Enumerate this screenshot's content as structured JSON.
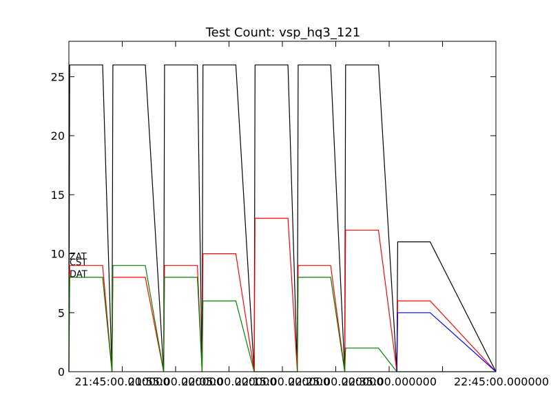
{
  "chart_data": {
    "type": "line",
    "title": "Test Count: vsp_hq3_121",
    "xlabel": "",
    "ylabel": "",
    "xlim": [
      0,
      100
    ],
    "ylim": [
      0,
      28
    ],
    "grid": false,
    "legend": "none",
    "x_tick_positions": [
      12.5,
      25.0,
      37.5,
      50.0,
      62.5,
      75.0,
      87.5
    ],
    "x_tick_labels": [
      "21:45:00.000000",
      "21:55:00.000000",
      "22:05:00.000000",
      "22:15:00.000000",
      "22:25:00.000000",
      "22:35:00.000000",
      "22:45:00.000000"
    ],
    "y_ticks": [
      0,
      5,
      10,
      15,
      20,
      25
    ],
    "series": [
      {
        "color": "#000000",
        "x": [
          0,
          0.2,
          7.9,
          10.1,
          10.3,
          17.9,
          22.2,
          22.4,
          30.1,
          31.2,
          31.4,
          39.1,
          43.4,
          43.6,
          51.3,
          53.5,
          53.7,
          61.3,
          64.6,
          64.8,
          72.5,
          76.8,
          77.0,
          84.6,
          100
        ],
        "y": [
          0,
          26,
          26,
          0,
          26,
          26,
          0,
          26,
          26,
          0,
          26,
          26,
          0,
          26,
          26,
          0,
          26,
          26,
          0,
          26,
          26,
          0,
          11,
          11,
          0
        ]
      },
      {
        "color": "#ff0000",
        "x": [
          0,
          0.2,
          7.9,
          10.1,
          10.3,
          17.9,
          22.2,
          22.4,
          30.1,
          31.2,
          31.4,
          39.1,
          43.4,
          43.6,
          51.3,
          53.5,
          53.7,
          61.3,
          64.6,
          64.8,
          72.5,
          76.8,
          77.0,
          84.6,
          100
        ],
        "y": [
          0,
          9,
          9,
          0,
          8,
          8,
          0,
          9,
          9,
          0,
          10,
          10,
          0,
          13,
          13,
          0,
          9,
          9,
          0,
          12,
          12,
          0,
          6,
          6,
          0
        ]
      },
      {
        "color": "#008000",
        "x": [
          0,
          0.2,
          7.9,
          10.1,
          10.3,
          17.9,
          22.2,
          22.4,
          30.1,
          31.2,
          31.4,
          39.1,
          43.4,
          43.6,
          51.3,
          53.5,
          53.7,
          61.3,
          64.6,
          64.8,
          72.5,
          76.8,
          77.0,
          84.6,
          100
        ],
        "y": [
          0,
          8,
          8,
          0,
          9,
          9,
          0,
          8,
          8,
          0,
          6,
          6,
          0,
          0,
          0,
          0,
          8,
          8,
          0,
          2,
          2,
          0,
          0,
          0,
          0
        ]
      },
      {
        "color": "#0000ff",
        "x": [
          76.8,
          77.0,
          84.6,
          100
        ],
        "y": [
          0,
          5,
          5,
          0
        ]
      }
    ],
    "series_text_labels": [
      "ZAT",
      "CST",
      "DAT"
    ],
    "series_text_values": [
      9.8,
      9.3,
      8.3
    ]
  }
}
